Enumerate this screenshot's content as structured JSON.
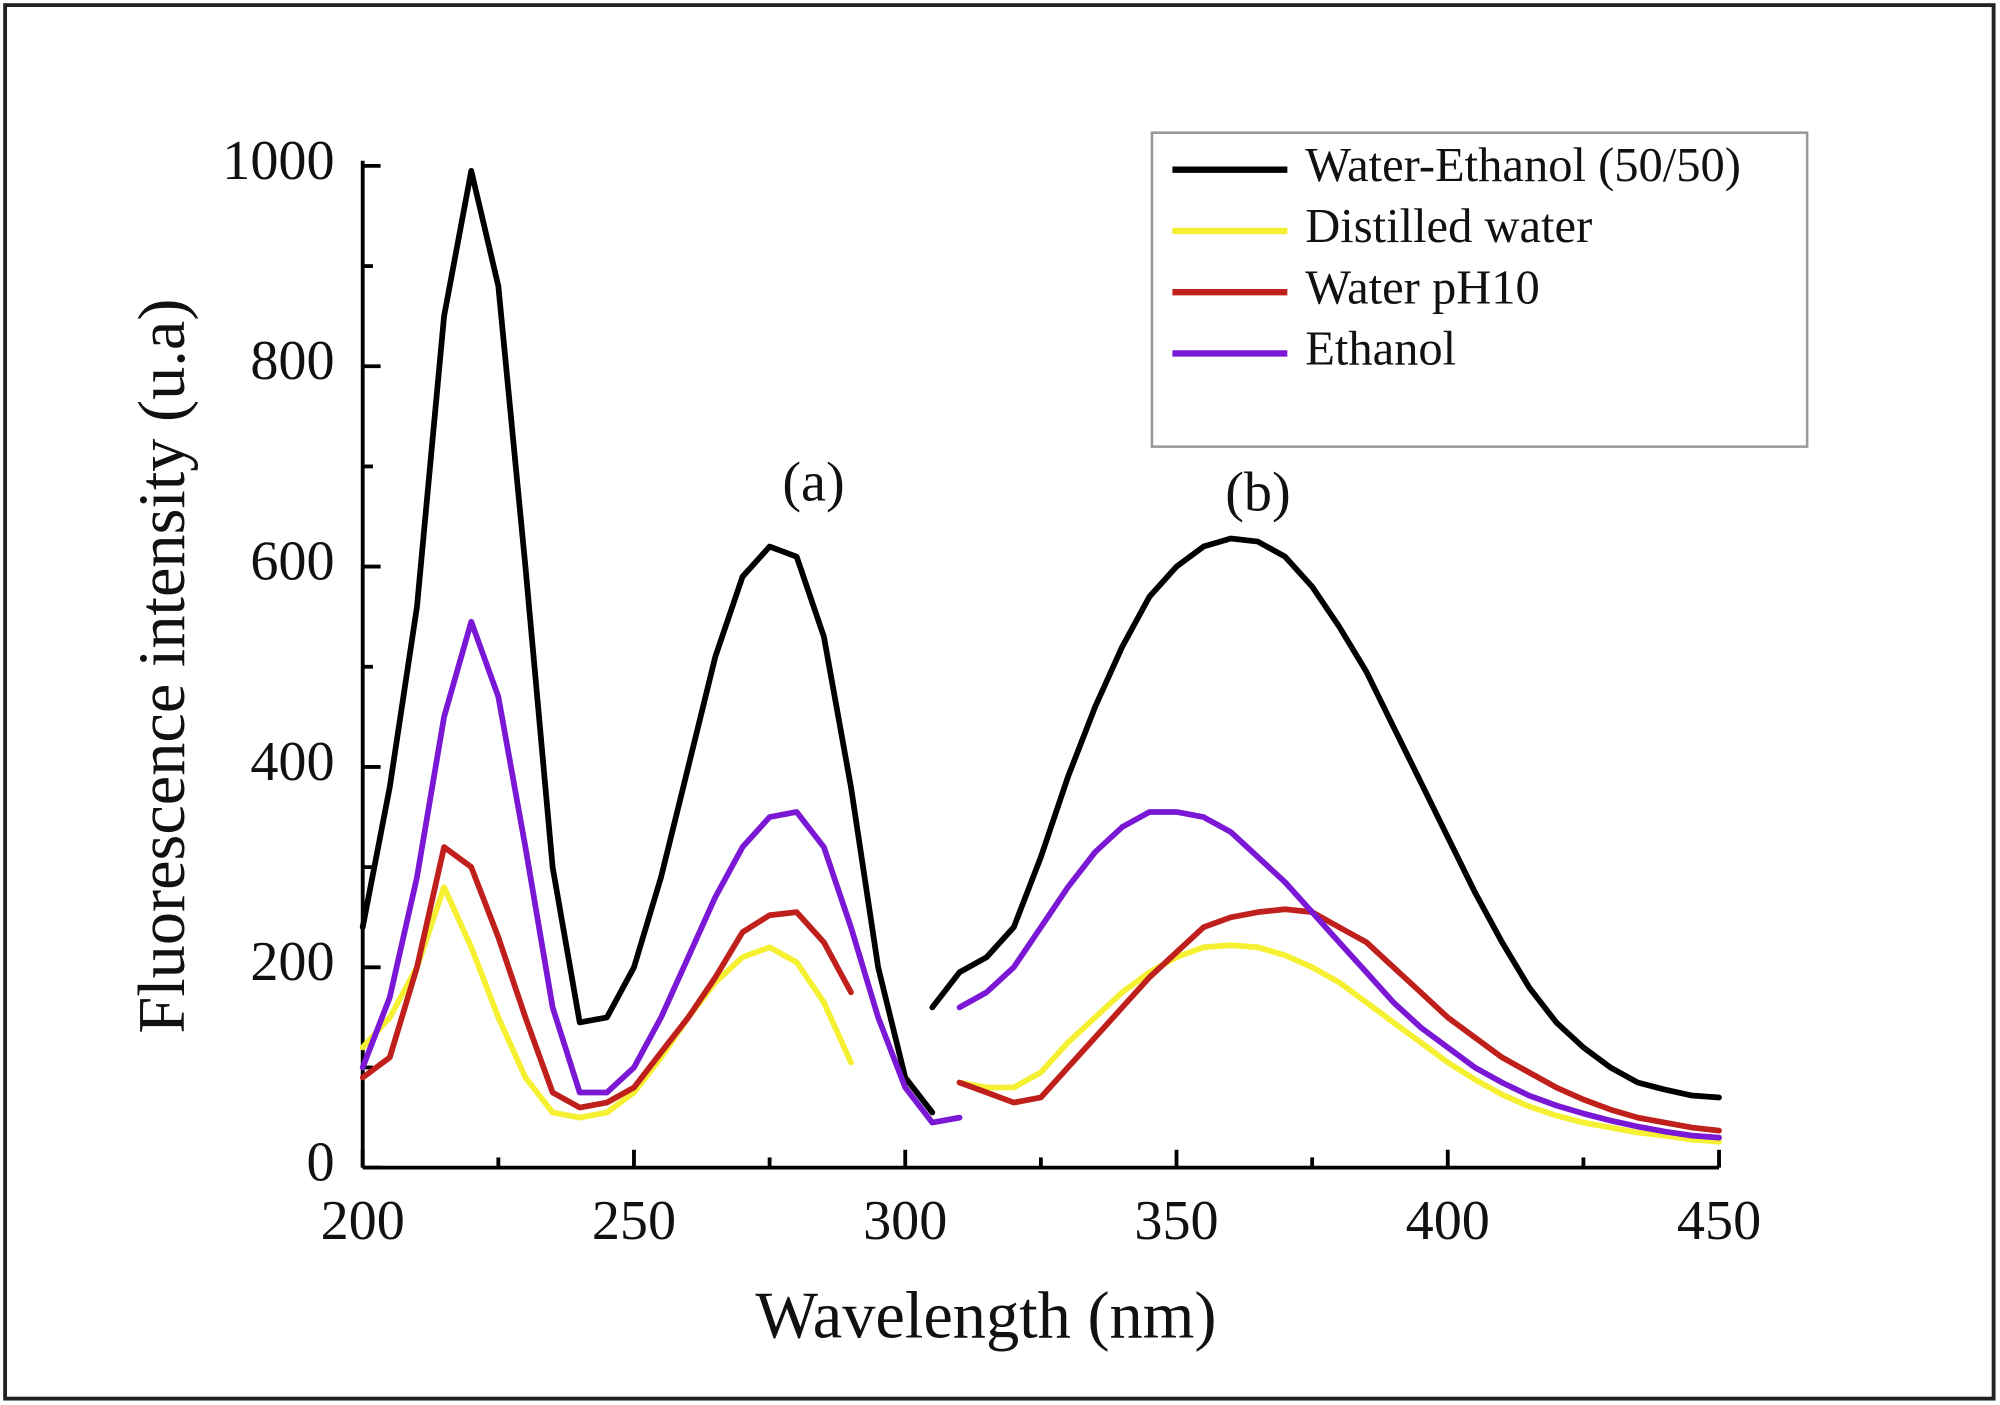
{
  "chart_data": {
    "type": "line",
    "x_label": "Wavelength (nm)",
    "y_label": "Fluorescence intensity (u.a)",
    "annotations": [
      "(a)",
      "(b)"
    ],
    "xlim": [
      200,
      450
    ],
    "xticks": [
      200,
      250,
      300,
      350,
      400,
      450
    ],
    "x_minor_ticks": [
      225,
      275,
      325,
      375,
      425
    ],
    "ylim": [
      0,
      1000
    ],
    "yticks": [
      0,
      200,
      400,
      600,
      800,
      1000
    ],
    "y_minor_ticks": [
      100,
      300,
      500,
      700,
      900
    ],
    "grid": false,
    "legend": "upper right",
    "x": [
      200,
      205,
      210,
      215,
      220,
      225,
      230,
      235,
      240,
      245,
      250,
      255,
      260,
      265,
      270,
      275,
      280,
      285,
      290,
      295,
      300,
      305,
      310,
      305,
      310,
      315,
      320,
      325,
      330,
      335,
      340,
      345,
      350,
      355,
      360,
      365,
      370,
      375,
      380,
      385,
      390,
      395,
      400,
      405,
      410,
      415,
      420,
      425,
      430,
      435,
      440,
      445,
      450
    ],
    "series": [
      {
        "name": "Water-Ethanol (50/50)",
        "color": "#000000",
        "values": [
          240,
          380,
          560,
          850,
          995,
          880,
          600,
          300,
          145,
          150,
          200,
          290,
          400,
          510,
          590,
          620,
          610,
          530,
          380,
          200,
          90,
          55,
          null,
          160,
          195,
          210,
          240,
          310,
          390,
          460,
          520,
          570,
          600,
          620,
          628,
          625,
          610,
          580,
          540,
          495,
          440,
          385,
          330,
          275,
          225,
          180,
          145,
          120,
          100,
          85,
          78,
          72,
          70
        ]
      },
      {
        "name": "Distilled water",
        "color": "#f5f032",
        "values": [
          120,
          150,
          200,
          280,
          220,
          150,
          90,
          55,
          50,
          55,
          75,
          110,
          150,
          185,
          210,
          220,
          205,
          165,
          105,
          null,
          null,
          null,
          null,
          null,
          85,
          80,
          80,
          95,
          125,
          150,
          175,
          195,
          210,
          220,
          222,
          220,
          212,
          200,
          185,
          165,
          145,
          125,
          105,
          88,
          73,
          61,
          52,
          45,
          40,
          35,
          32,
          28,
          26
        ]
      },
      {
        "name": "Water pH10",
        "color": "#c0201c",
        "values": [
          90,
          110,
          200,
          320,
          300,
          230,
          150,
          75,
          60,
          65,
          80,
          115,
          150,
          190,
          235,
          252,
          255,
          225,
          175,
          null,
          null,
          null,
          null,
          null,
          85,
          75,
          65,
          70,
          100,
          130,
          160,
          190,
          215,
          240,
          250,
          255,
          258,
          255,
          240,
          225,
          200,
          175,
          150,
          130,
          110,
          95,
          80,
          68,
          58,
          50,
          45,
          40,
          37
        ]
      },
      {
        "name": "Ethanol",
        "color": "#7a18d6",
        "values": [
          100,
          170,
          290,
          450,
          545,
          470,
          320,
          160,
          75,
          75,
          100,
          150,
          210,
          270,
          320,
          350,
          355,
          320,
          240,
          150,
          80,
          45,
          50,
          null,
          160,
          175,
          200,
          240,
          280,
          315,
          340,
          355,
          355,
          350,
          335,
          310,
          285,
          255,
          225,
          195,
          165,
          140,
          120,
          100,
          85,
          72,
          62,
          54,
          47,
          41,
          36,
          32,
          30
        ]
      }
    ]
  }
}
